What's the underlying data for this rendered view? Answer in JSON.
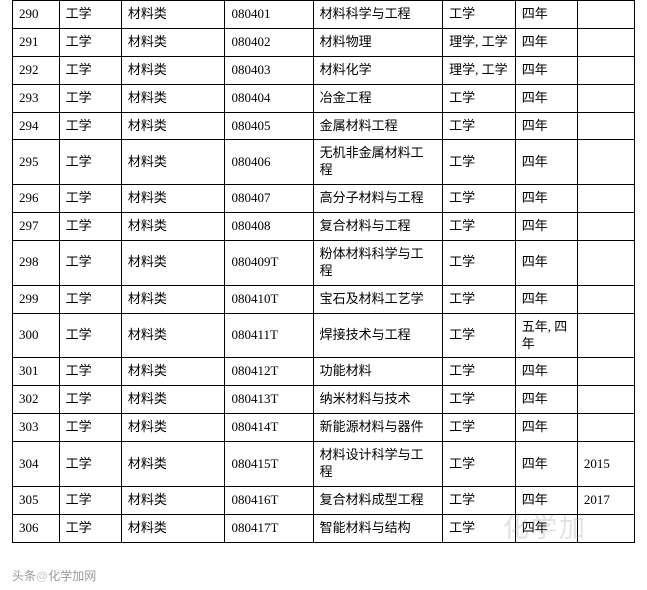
{
  "table": {
    "columns": [
      {
        "key": "idx",
        "width_class": "col-0"
      },
      {
        "key": "discipline",
        "width_class": "col-1"
      },
      {
        "key": "category",
        "width_class": "col-2"
      },
      {
        "key": "code",
        "width_class": "col-3"
      },
      {
        "key": "major",
        "width_class": "col-4"
      },
      {
        "key": "degree",
        "width_class": "col-5"
      },
      {
        "key": "duration",
        "width_class": "col-6"
      },
      {
        "key": "year",
        "width_class": "col-7"
      }
    ],
    "rows": [
      {
        "idx": "290",
        "discipline": "工学",
        "category": "材料类",
        "code": "080401",
        "major": "材料科学与工程",
        "degree": "工学",
        "duration": "四年",
        "year": ""
      },
      {
        "idx": "291",
        "discipline": "工学",
        "category": "材料类",
        "code": "080402",
        "major": "材料物理",
        "degree": "理学, 工学",
        "duration": "四年",
        "year": ""
      },
      {
        "idx": "292",
        "discipline": "工学",
        "category": "材料类",
        "code": "080403",
        "major": "材料化学",
        "degree": "理学, 工学",
        "duration": "四年",
        "year": ""
      },
      {
        "idx": "293",
        "discipline": "工学",
        "category": "材料类",
        "code": "080404",
        "major": "冶金工程",
        "degree": "工学",
        "duration": "四年",
        "year": ""
      },
      {
        "idx": "294",
        "discipline": "工学",
        "category": "材料类",
        "code": "080405",
        "major": "金属材料工程",
        "degree": "工学",
        "duration": "四年",
        "year": ""
      },
      {
        "idx": "295",
        "discipline": "工学",
        "category": "材料类",
        "code": "080406",
        "major": "无机非金属材料工程",
        "degree": "工学",
        "duration": "四年",
        "year": ""
      },
      {
        "idx": "296",
        "discipline": "工学",
        "category": "材料类",
        "code": "080407",
        "major": "高分子材料与工程",
        "degree": "工学",
        "duration": "四年",
        "year": ""
      },
      {
        "idx": "297",
        "discipline": "工学",
        "category": "材料类",
        "code": "080408",
        "major": "复合材料与工程",
        "degree": "工学",
        "duration": "四年",
        "year": ""
      },
      {
        "idx": "298",
        "discipline": "工学",
        "category": "材料类",
        "code": "080409T",
        "major": "粉体材料科学与工程",
        "degree": "工学",
        "duration": "四年",
        "year": ""
      },
      {
        "idx": "299",
        "discipline": "工学",
        "category": "材料类",
        "code": "080410T",
        "major": "宝石及材料工艺学",
        "degree": "工学",
        "duration": "四年",
        "year": ""
      },
      {
        "idx": "300",
        "discipline": "工学",
        "category": "材料类",
        "code": "080411T",
        "major": "焊接技术与工程",
        "degree": "工学",
        "duration": "五年, 四年",
        "year": ""
      },
      {
        "idx": "301",
        "discipline": "工学",
        "category": "材料类",
        "code": "080412T",
        "major": "功能材料",
        "degree": "工学",
        "duration": "四年",
        "year": ""
      },
      {
        "idx": "302",
        "discipline": "工学",
        "category": "材料类",
        "code": "080413T",
        "major": "纳米材料与技术",
        "degree": "工学",
        "duration": "四年",
        "year": ""
      },
      {
        "idx": "303",
        "discipline": "工学",
        "category": "材料类",
        "code": "080414T",
        "major": "新能源材料与器件",
        "degree": "工学",
        "duration": "四年",
        "year": ""
      },
      {
        "idx": "304",
        "discipline": "工学",
        "category": "材料类",
        "code": "080415T",
        "major": "材料设计科学与工程",
        "degree": "工学",
        "duration": "四年",
        "year": "2015"
      },
      {
        "idx": "305",
        "discipline": "工学",
        "category": "材料类",
        "code": "080416T",
        "major": "复合材料成型工程",
        "degree": "工学",
        "duration": "四年",
        "year": "2017"
      },
      {
        "idx": "306",
        "discipline": "工学",
        "category": "材料类",
        "code": "080417T",
        "major": "智能材料与结构",
        "degree": "工学",
        "duration": "四年",
        "year": ""
      }
    ],
    "border_color": "#000000",
    "background_color": "#ffffff",
    "font_size": 13,
    "font_family": "SimSun"
  },
  "watermark": {
    "text": "化学加",
    "color": "rgba(150,150,150,0.28)",
    "font_size": 26
  },
  "footer": {
    "prefix": "头条",
    "at": "@",
    "suffix": "化学加网"
  }
}
